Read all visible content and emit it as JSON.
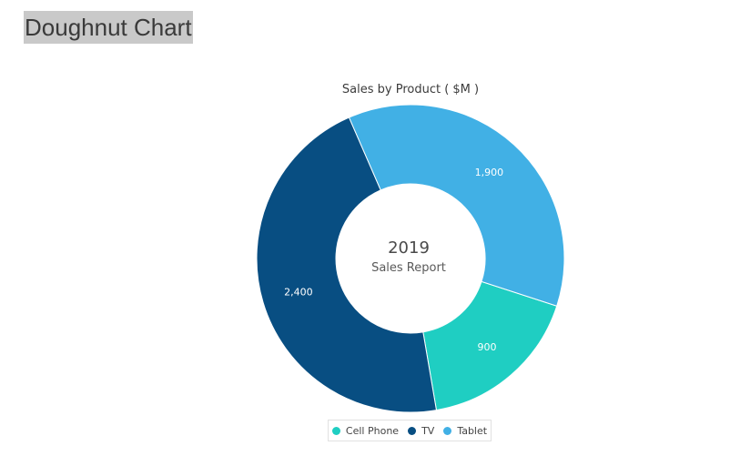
{
  "page": {
    "heading": "Doughnut Chart"
  },
  "chart_data": {
    "type": "doughnut",
    "title": "Sales by Product ( $M )",
    "center_text": {
      "line1": "2019",
      "line2": "Sales Report"
    },
    "categories": [
      "Cell Phone",
      "TV",
      "Tablet"
    ],
    "values": [
      900,
      2400,
      1900
    ],
    "value_labels": [
      "900",
      "2,400",
      "1,900"
    ],
    "colors": [
      "#1fcec2",
      "#084e82",
      "#41b0e5"
    ],
    "legend_position": "bottom"
  }
}
